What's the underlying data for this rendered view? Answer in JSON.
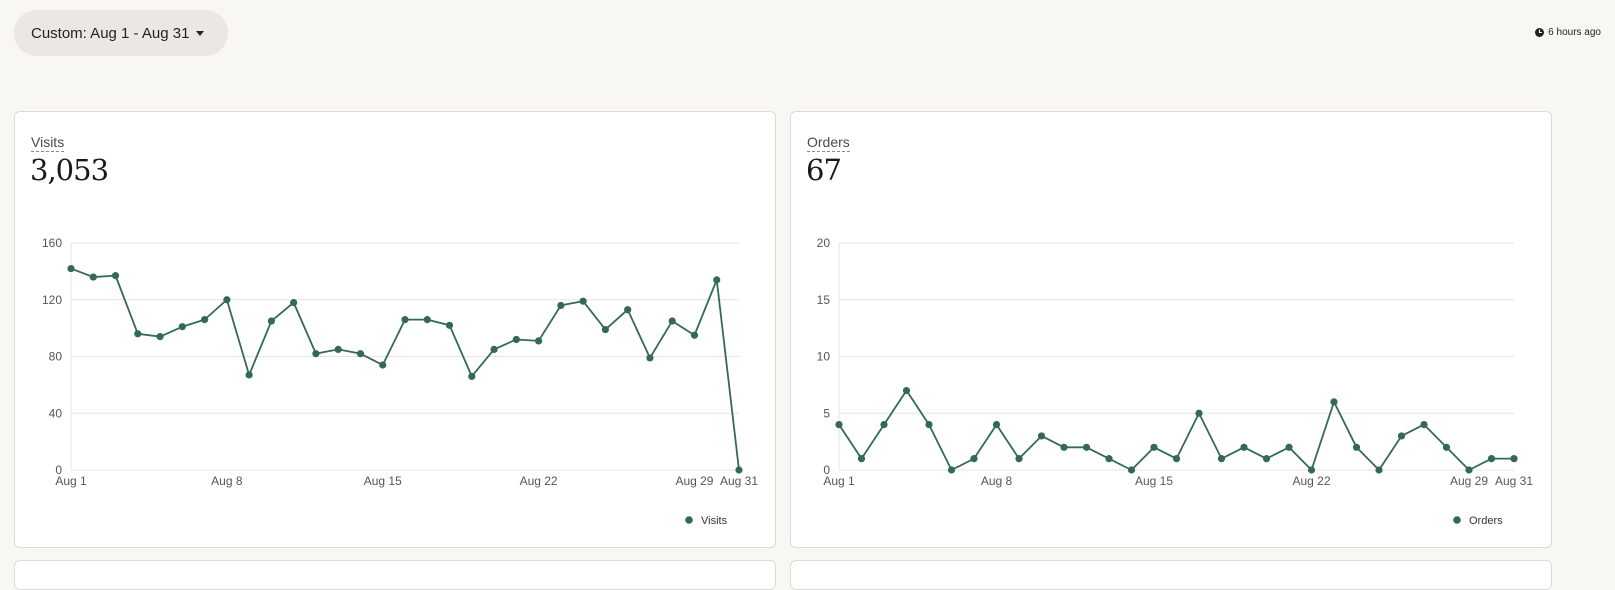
{
  "header": {
    "date_range_label": "Custom: Aug 1 - Aug 31",
    "last_updated": "6 hours ago",
    "icons": {
      "dropdown": "caret-down-icon",
      "updated": "clock-icon"
    }
  },
  "colors": {
    "line": "#34695a",
    "grid": "#e4e4e4",
    "background": "#f8f7f4"
  },
  "cards": [
    {
      "label": "Visits",
      "value": "3,053"
    },
    {
      "label": "Orders",
      "value": "67"
    }
  ],
  "chart_data": [
    {
      "type": "line",
      "x": [
        "Aug 1",
        "Aug 2",
        "Aug 3",
        "Aug 4",
        "Aug 5",
        "Aug 6",
        "Aug 7",
        "Aug 8",
        "Aug 9",
        "Aug 10",
        "Aug 11",
        "Aug 12",
        "Aug 13",
        "Aug 14",
        "Aug 15",
        "Aug 16",
        "Aug 17",
        "Aug 18",
        "Aug 19",
        "Aug 20",
        "Aug 21",
        "Aug 22",
        "Aug 23",
        "Aug 24",
        "Aug 25",
        "Aug 26",
        "Aug 27",
        "Aug 28",
        "Aug 29",
        "Aug 30",
        "Aug 31"
      ],
      "series": [
        {
          "name": "Visits",
          "values": [
            142,
            136,
            137,
            96,
            94,
            101,
            106,
            120,
            67,
            105,
            118,
            82,
            85,
            82,
            74,
            106,
            106,
            102,
            66,
            85,
            92,
            91,
            116,
            119,
            99,
            113,
            79,
            105,
            95,
            134,
            0
          ]
        }
      ],
      "x_tick_labels": [
        "Aug 1",
        "Aug 8",
        "Aug 15",
        "Aug 22",
        "Aug 29",
        "Aug 31"
      ],
      "y_ticks": [
        0,
        40,
        80,
        120,
        160
      ],
      "ylim": [
        0,
        160
      ],
      "grid": true,
      "legend": "bottom-right"
    },
    {
      "type": "line",
      "x": [
        "Aug 1",
        "Aug 2",
        "Aug 3",
        "Aug 4",
        "Aug 5",
        "Aug 6",
        "Aug 7",
        "Aug 8",
        "Aug 9",
        "Aug 10",
        "Aug 11",
        "Aug 12",
        "Aug 13",
        "Aug 14",
        "Aug 15",
        "Aug 16",
        "Aug 17",
        "Aug 18",
        "Aug 19",
        "Aug 20",
        "Aug 21",
        "Aug 22",
        "Aug 23",
        "Aug 24",
        "Aug 25",
        "Aug 26",
        "Aug 27",
        "Aug 28",
        "Aug 29",
        "Aug 30",
        "Aug 31"
      ],
      "series": [
        {
          "name": "Orders",
          "values": [
            4,
            1,
            4,
            7,
            4,
            0,
            1,
            4,
            1,
            3,
            2,
            2,
            1,
            0,
            2,
            1,
            5,
            1,
            2,
            1,
            2,
            0,
            6,
            2,
            0,
            3,
            4,
            2,
            0,
            1,
            1
          ]
        }
      ],
      "x_tick_labels": [
        "Aug 1",
        "Aug 8",
        "Aug 15",
        "Aug 22",
        "Aug 29",
        "Aug 31"
      ],
      "y_ticks": [
        0,
        5,
        10,
        15,
        20
      ],
      "ylim": [
        0,
        20
      ],
      "grid": true,
      "legend": "bottom-right"
    }
  ]
}
